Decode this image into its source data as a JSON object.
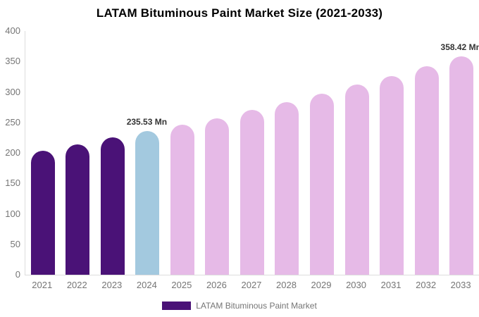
{
  "chart_data": {
    "type": "bar",
    "title": "LATAM Bituminous Paint Market Size (2021-2033)",
    "unit": "Mn",
    "categories": [
      "2021",
      "2022",
      "2023",
      "2024",
      "2025",
      "2026",
      "2027",
      "2028",
      "2029",
      "2030",
      "2031",
      "2032",
      "2033"
    ],
    "series": [
      {
        "name": "LATAM Bituminous Paint Market",
        "values": [
          204,
          214,
          225,
          235.53,
          246,
          257,
          270,
          283,
          297,
          312,
          326,
          342,
          358.42
        ]
      }
    ],
    "bar_colors": [
      "#4A1277",
      "#4A1277",
      "#4A1277",
      "#A3C9DF",
      "#E6BAE7",
      "#E6BAE7",
      "#E6BAE7",
      "#E6BAE7",
      "#E6BAE7",
      "#E6BAE7",
      "#E6BAE7",
      "#E6BAE7",
      "#E6BAE7"
    ],
    "ylim": [
      0,
      400
    ],
    "yticks": [
      0,
      50,
      100,
      150,
      200,
      250,
      300,
      350,
      400
    ],
    "grid": false,
    "legend_position": "bottom",
    "data_labels": [
      {
        "category": "2024",
        "text": "235.53 Mn"
      },
      {
        "category": "2033",
        "text": "358.42 Mn"
      }
    ]
  },
  "legend": {
    "label": "LATAM Bituminous Paint Market",
    "swatch_color": "#4A1277"
  },
  "colors": {
    "historical_bar": "#4A1277",
    "current_year_bar": "#A3C9DF",
    "forecast_bar": "#E6BAE7",
    "axis_line": "#DDDDDD",
    "tick_text": "#757575",
    "data_label_text": "#333333",
    "title_text": "#000000",
    "background": "#FFFFFF"
  }
}
